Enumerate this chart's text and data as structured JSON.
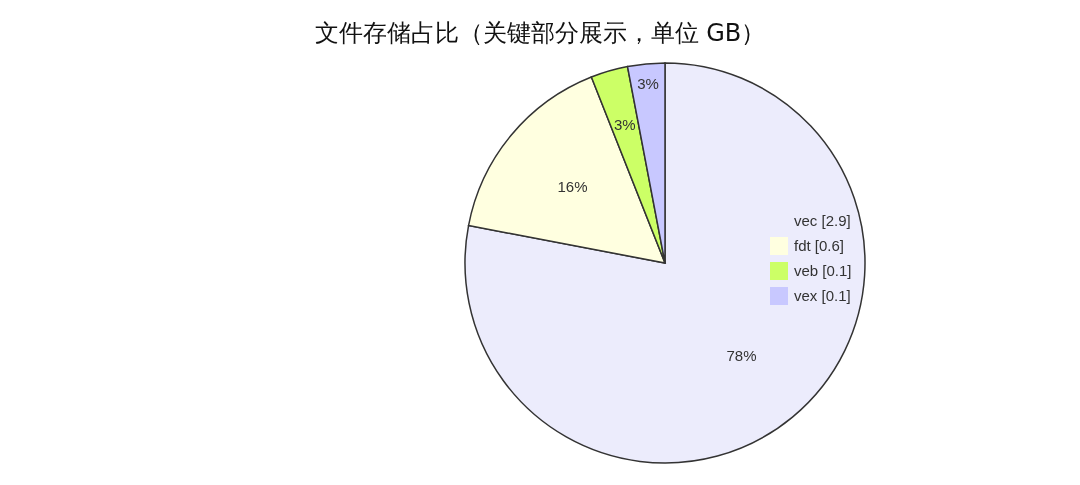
{
  "chart_data": {
    "type": "pie",
    "title": "文件存储占比（关键部分展示，单位 GB）",
    "categories": [
      "vec [2.9]",
      "fdt [0.6]",
      "veb [0.1]",
      "vex [0.1]"
    ],
    "values": [
      78,
      16,
      3,
      3
    ],
    "value_labels": [
      "78%",
      "16%",
      "3%",
      "3%"
    ],
    "colors": [
      "#ececfc",
      "#ffffe0",
      "#ccff66",
      "#c8c8ff"
    ],
    "legend": "right"
  }
}
